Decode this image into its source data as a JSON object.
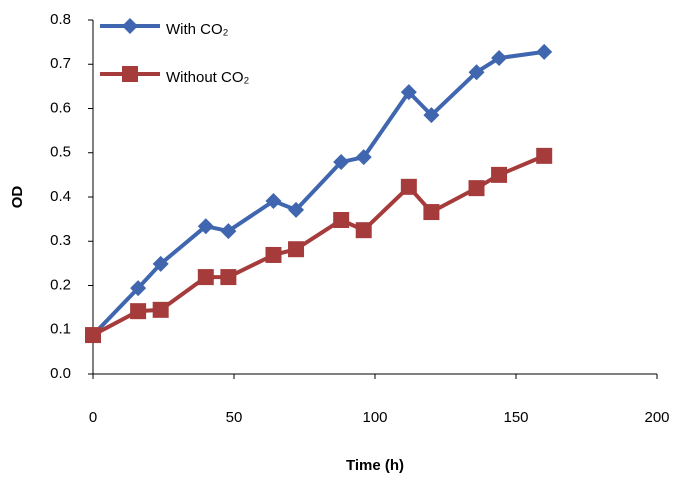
{
  "chart_data": {
    "type": "line",
    "x_label": "Time (h)",
    "y_label": "OD",
    "x": [
      0,
      16,
      24,
      40,
      48,
      64,
      72,
      88,
      96,
      112,
      120,
      136,
      144,
      160
    ],
    "series": [
      {
        "name": "With CO₂",
        "color": "#3f66ae",
        "marker": "diamond",
        "values": [
          0.088,
          0.194,
          0.249,
          0.334,
          0.323,
          0.391,
          0.371,
          0.479,
          0.49,
          0.637,
          0.585,
          0.682,
          0.714,
          0.728
        ]
      },
      {
        "name": "Without CO₂",
        "color": "#a63b3b",
        "marker": "square",
        "values": [
          0.088,
          0.142,
          0.145,
          0.219,
          0.219,
          0.269,
          0.282,
          0.348,
          0.325,
          0.423,
          0.366,
          0.42,
          0.45,
          0.493
        ]
      }
    ],
    "xlim": [
      0,
      200
    ],
    "xticks": [
      0,
      50,
      100,
      150,
      200
    ],
    "ylim": [
      0,
      0.8
    ],
    "yticks": [
      {
        "value": 0,
        "label": "0.0"
      },
      0.1,
      0.2,
      0.3,
      0.4,
      0.5,
      0.6,
      0.7,
      0.8
    ],
    "grid": false,
    "legend": "top-left"
  }
}
